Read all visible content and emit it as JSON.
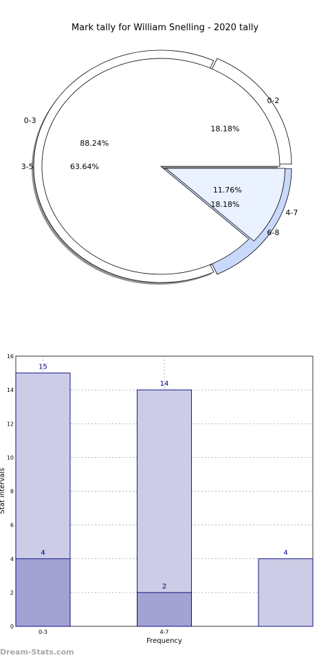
{
  "chart_data": [
    {
      "type": "pie",
      "title": "Mark tally for William Snelling - 2020 tally",
      "series": [
        {
          "slices": [
            {
              "label": "0-3",
              "value": 88.24,
              "pct": "88.24%",
              "color": "#ffffff"
            },
            {
              "label": "4-7",
              "value": 11.76,
              "pct": "11.76%",
              "color": "#eaf1ff"
            }
          ]
        },
        {
          "slices": [
            {
              "label": "0-2",
              "value": 18.18,
              "pct": "18.18%",
              "color": "#ffffff"
            },
            {
              "label": "3-5",
              "value": 63.64,
              "pct": "63.64%",
              "color": "#ffffff"
            },
            {
              "label": "6-8",
              "value": 18.18,
              "pct": "18.18%",
              "color": "#c9d9fb"
            }
          ]
        }
      ]
    },
    {
      "type": "bar",
      "categories": [
        "0-3",
        "4-7",
        ""
      ],
      "series": [
        {
          "values": [
            15,
            14,
            4
          ],
          "labels": [
            "15",
            "14",
            "4"
          ],
          "color": "#cccce6"
        },
        {
          "values": [
            4,
            2,
            null
          ],
          "labels": [
            "4",
            "2",
            ""
          ],
          "color": "#a3a3d3"
        }
      ],
      "xlabel": "Frequency",
      "ylabel": "Stat intervals",
      "ylim": [
        0,
        16
      ],
      "yticks": [
        0,
        2,
        4,
        6,
        8,
        10,
        12,
        14,
        16
      ],
      "grid": true
    }
  ],
  "footer": {
    "watermark": "Dream-Stats.com"
  }
}
